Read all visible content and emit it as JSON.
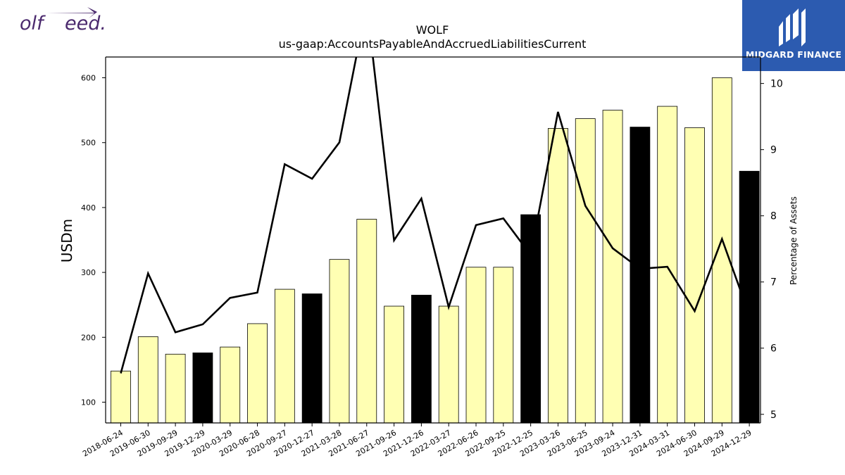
{
  "logos": {
    "left_text_part1": "olf",
    "left_text_part2": "eed.",
    "right_brand": "MIDGARD FINANCE",
    "right_color": "#2c5bb0",
    "left_color": "#4b2a6e"
  },
  "chart_data": {
    "type": "bar",
    "title": "WOLF",
    "subtitle": "us-gaap:AccountsPayableAndAccruedLiabilitiesCurrent",
    "ylabel": "USDm",
    "y2label": "Percentage of Assets",
    "ylim": [
      68,
      632
    ],
    "y2lim": [
      4.87,
      10.4
    ],
    "yticks": [
      100,
      200,
      300,
      400,
      500,
      600
    ],
    "y2ticks": [
      5,
      6,
      7,
      8,
      9,
      10
    ],
    "categories": [
      "2018-06-24",
      "2019-06-30",
      "2019-09-29",
      "2019-12-29",
      "2020-03-29",
      "2020-06-28",
      "2020-09-27",
      "2020-12-27",
      "2021-03-28",
      "2021-06-27",
      "2021-09-26",
      "2021-12-26",
      "2022-03-27",
      "2022-06-26",
      "2022-09-25",
      "2022-12-25",
      "2023-03-26",
      "2023-06-25",
      "2023-09-24",
      "2023-12-31",
      "2024-03-31",
      "2024-06-30",
      "2024-09-29",
      "2024-12-29"
    ],
    "series": [
      {
        "type": "bar",
        "values": [
          148,
          201,
          174,
          176,
          185,
          221,
          274,
          267,
          320,
          382,
          248,
          265,
          248,
          308,
          308,
          389,
          522,
          537,
          550,
          524,
          556,
          523,
          600,
          456
        ],
        "fiscal_q4": [
          false,
          false,
          false,
          true,
          false,
          false,
          false,
          true,
          false,
          false,
          false,
          true,
          false,
          false,
          false,
          true,
          false,
          false,
          false,
          true,
          false,
          false,
          false,
          true
        ]
      },
      {
        "type": "line",
        "axis": "right",
        "values": [
          5.62,
          7.13,
          6.24,
          6.36,
          6.76,
          6.84,
          8.78,
          8.56,
          9.11,
          11.2,
          7.63,
          8.26,
          6.62,
          7.86,
          7.96,
          7.41,
          9.57,
          8.15,
          7.51,
          7.2,
          7.23,
          6.56,
          7.65,
          6.5
        ]
      }
    ],
    "colors": {
      "bar": "#ffffb3",
      "bar_q4": "#000000",
      "line": "#000000"
    }
  }
}
